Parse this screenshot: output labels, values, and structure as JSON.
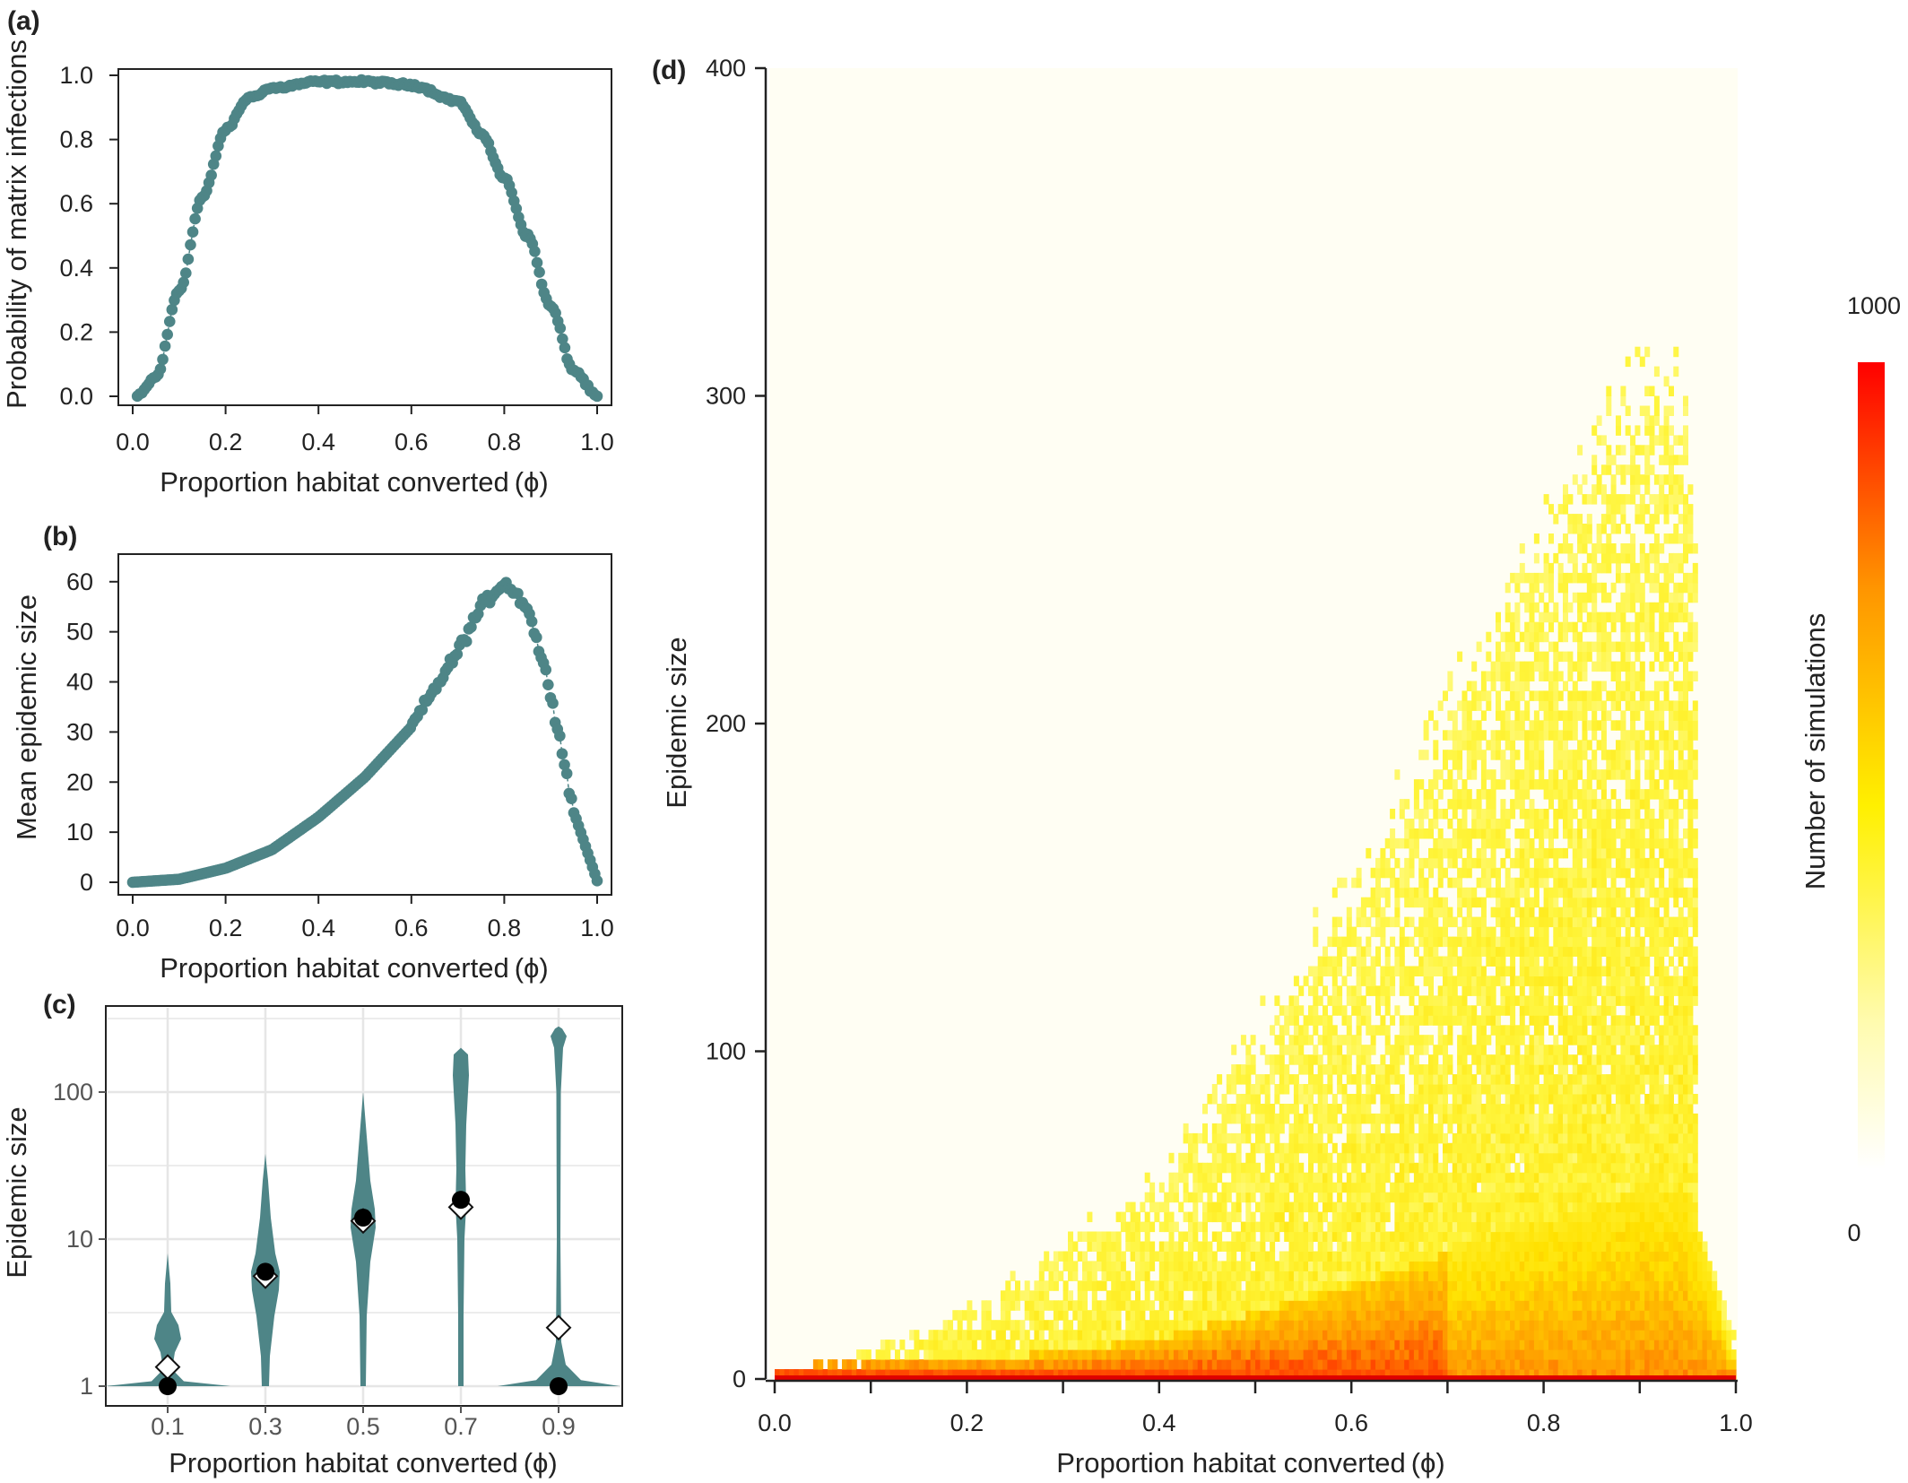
{
  "colors": {
    "series": "#4e8587",
    "grid": "#e6e6e6",
    "heatmap_background": "#fffef3",
    "heatmap_low": "#ffffe0",
    "heatmap_mid": "#fff200",
    "heatmap_high": "#ff9a00",
    "heatmap_max": "#ff0000"
  },
  "chart_data": [
    {
      "panel": "(a)",
      "type": "scatter",
      "title": "",
      "xlabel": "Proportion habitat converted",
      "xlabel_symbol": "(ϕ)",
      "ylabel": "Probability of matrix infections",
      "xlim": [
        0,
        1
      ],
      "ylim": [
        0,
        1
      ],
      "xticks": [
        "0.0",
        "0.2",
        "0.4",
        "0.6",
        "0.8",
        "1.0"
      ],
      "yticks": [
        "0.0",
        "0.2",
        "0.4",
        "0.6",
        "0.8",
        "1.0"
      ],
      "curve": "smooth dome: 0 at ϕ=0.01, rises to ~0.98 plateau between ϕ≈0.35 and ϕ≈0.65, falls to 0 at ϕ=1.0; 200 points",
      "key_points": [
        [
          0.01,
          0.0
        ],
        [
          0.05,
          0.06
        ],
        [
          0.1,
          0.33
        ],
        [
          0.15,
          0.62
        ],
        [
          0.2,
          0.83
        ],
        [
          0.25,
          0.93
        ],
        [
          0.3,
          0.96
        ],
        [
          0.4,
          0.98
        ],
        [
          0.5,
          0.98
        ],
        [
          0.6,
          0.97
        ],
        [
          0.7,
          0.92
        ],
        [
          0.75,
          0.82
        ],
        [
          0.8,
          0.68
        ],
        [
          0.85,
          0.5
        ],
        [
          0.9,
          0.28
        ],
        [
          0.95,
          0.08
        ],
        [
          1.0,
          0.0
        ]
      ]
    },
    {
      "panel": "(b)",
      "type": "scatter",
      "title": "",
      "xlabel": "Proportion habitat converted",
      "xlabel_symbol": "(ϕ)",
      "ylabel": "Mean epidemic size",
      "xlim": [
        0,
        1
      ],
      "ylim": [
        0,
        63
      ],
      "xticks": [
        "0.0",
        "0.2",
        "0.4",
        "0.6",
        "0.8",
        "1.0"
      ],
      "yticks": [
        "0",
        "10",
        "20",
        "30",
        "40",
        "50",
        "60"
      ],
      "curve": "near zero to ϕ≈0.1, convex growth to peak ~61 at ϕ≈0.79, steep drop to 0 at ϕ=1.0; 200 points",
      "key_points": [
        [
          0.0,
          0.0
        ],
        [
          0.1,
          0.6
        ],
        [
          0.2,
          2.8
        ],
        [
          0.3,
          6.5
        ],
        [
          0.4,
          13
        ],
        [
          0.5,
          21
        ],
        [
          0.6,
          31
        ],
        [
          0.7,
          46
        ],
        [
          0.75,
          55
        ],
        [
          0.8,
          60
        ],
        [
          0.85,
          55
        ],
        [
          0.9,
          38
        ],
        [
          0.95,
          14
        ],
        [
          1.0,
          0.3
        ]
      ]
    },
    {
      "panel": "(c)",
      "type": "violin",
      "title": "",
      "xlabel": "Proportion habitat converted",
      "xlabel_symbol": "(ϕ)",
      "ylabel": "Epidemic size",
      "yscale": "log10",
      "ylim": [
        1,
        300
      ],
      "yticks": [
        "1",
        "10",
        "100"
      ],
      "categories": [
        "0.1",
        "0.3",
        "0.5",
        "0.7",
        "0.9"
      ],
      "violins": [
        {
          "x": "0.1",
          "min": 1,
          "max": 8,
          "median": 1,
          "mean": 1.35
        },
        {
          "x": "0.3",
          "min": 1,
          "max": 38,
          "median": 6.0,
          "mean": 5.6
        },
        {
          "x": "0.5",
          "min": 1,
          "max": 100,
          "median": 14,
          "mean": 13.3
        },
        {
          "x": "0.7",
          "min": 1,
          "max": 200,
          "median": 18.5,
          "mean": 16.5
        },
        {
          "x": "0.9",
          "min": 1,
          "max": 260,
          "median": 1,
          "mean": 2.5
        }
      ],
      "markers": {
        "median": "filled circle",
        "mean": "open diamond"
      }
    },
    {
      "panel": "(d)",
      "type": "heatmap",
      "title": "",
      "xlabel": "Proportion habitat converted",
      "xlabel_symbol": "(ϕ)",
      "ylabel": "Epidemic size",
      "xlim": [
        0,
        1
      ],
      "ylim": [
        0,
        400
      ],
      "xticks": [
        "0.0",
        "0.2",
        "0.4",
        "0.6",
        "0.8",
        "1.0"
      ],
      "yticks": [
        "0",
        "100",
        "200",
        "300",
        "400"
      ],
      "colorbar": {
        "label": "Number of simulations",
        "min": "0",
        "max": "1000"
      },
      "description_values": {
        "upper_edge": [
          [
            0.1,
            8
          ],
          [
            0.2,
            20
          ],
          [
            0.4,
            60
          ],
          [
            0.6,
            150
          ],
          [
            0.8,
            260
          ],
          [
            0.9,
            310
          ],
          [
            0.95,
            300
          ],
          [
            1.0,
            5
          ]
        ],
        "peak_density_line": "size 0 across all ϕ"
      }
    }
  ]
}
